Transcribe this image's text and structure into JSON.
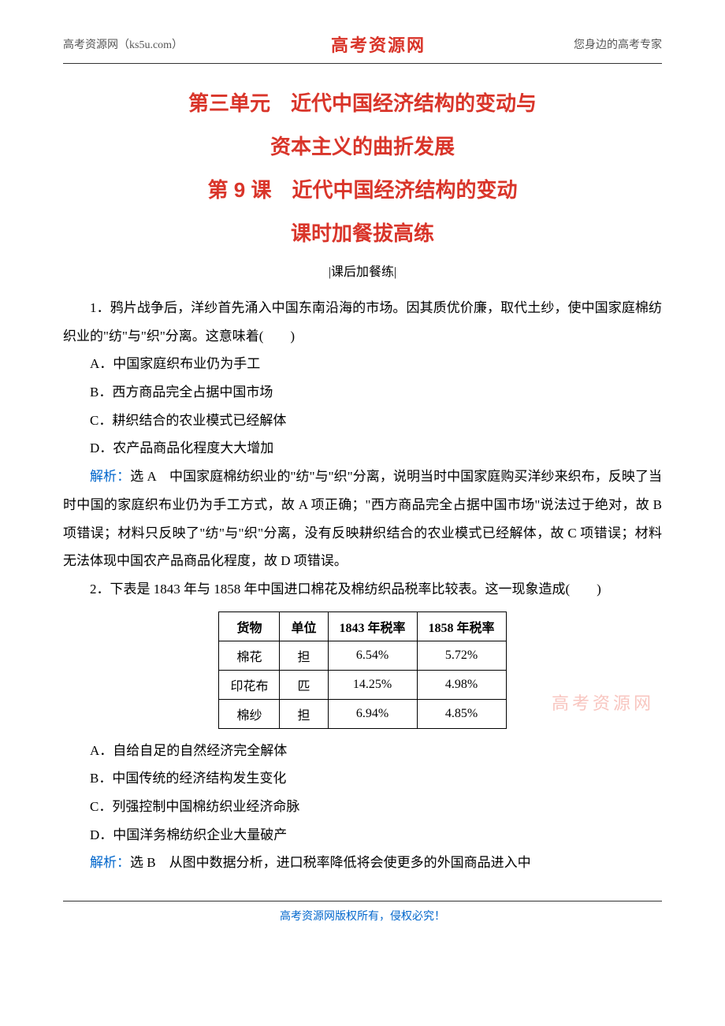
{
  "header": {
    "left": "高考资源网（ks5u.com）",
    "center": "高考资源网",
    "right": "您身边的高考专家"
  },
  "titles": {
    "line1": "第三单元　近代中国经济结构的变动与",
    "line2": "资本主义的曲折发展",
    "line3": "第 9 课　近代中国经济结构的变动",
    "line4": "课时加餐拔高练"
  },
  "subtitle": "|课后加餐练|",
  "q1": {
    "stem": "1．鸦片战争后，洋纱首先涌入中国东南沿海的市场。因其质优价廉，取代土纱，使中国家庭棉纺织业的\"纺\"与\"织\"分离。这意味着(　　)",
    "optA": "A．中国家庭织布业仍为手工",
    "optB": "B．西方商品完全占据中国市场",
    "optC": "C．耕织结合的农业模式已经解体",
    "optD": "D．农产品商品化程度大大增加",
    "answerLabel": "解析：",
    "answerPrefix": "选 A　",
    "answerBody": "中国家庭棉纺织业的\"纺\"与\"织\"分离，说明当时中国家庭购买洋纱来织布，反映了当时中国的家庭织布业仍为手工方式，故 A 项正确；\"西方商品完全占据中国市场\"说法过于绝对，故 B 项错误；材料只反映了\"纺\"与\"织\"分离，没有反映耕织结合的农业模式已经解体，故 C 项错误；材料无法体现中国农产品商品化程度，故 D 项错误。"
  },
  "q2": {
    "stem": "2．下表是 1843 年与 1858 年中国进口棉花及棉纺织品税率比较表。这一现象造成(　　)",
    "table": {
      "columns": [
        "货物",
        "单位",
        "1843 年税率",
        "1858 年税率"
      ],
      "rows": [
        [
          "棉花",
          "担",
          "6.54%",
          "5.72%"
        ],
        [
          "印花布",
          "匹",
          "14.25%",
          "4.98%"
        ],
        [
          "棉纱",
          "担",
          "6.94%",
          "4.85%"
        ]
      ]
    },
    "optA": "A．自给自足的自然经济完全解体",
    "optB": "B．中国传统的经济结构发生变化",
    "optC": "C．列强控制中国棉纺织业经济命脉",
    "optD": "D．中国洋务棉纺织企业大量破产",
    "answerLabel": "解析：",
    "answerPrefix": "选 B　",
    "answerBody": "从图中数据分析，进口税率降低将会使更多的外国商品进入中"
  },
  "watermark": "高考资源网",
  "footer": "高考资源网版权所有，侵权必究！",
  "colors": {
    "red": "#d9352a",
    "blue": "#0066cc",
    "watermark": "#f8c6c0",
    "text": "#000000",
    "border": "#000000"
  }
}
